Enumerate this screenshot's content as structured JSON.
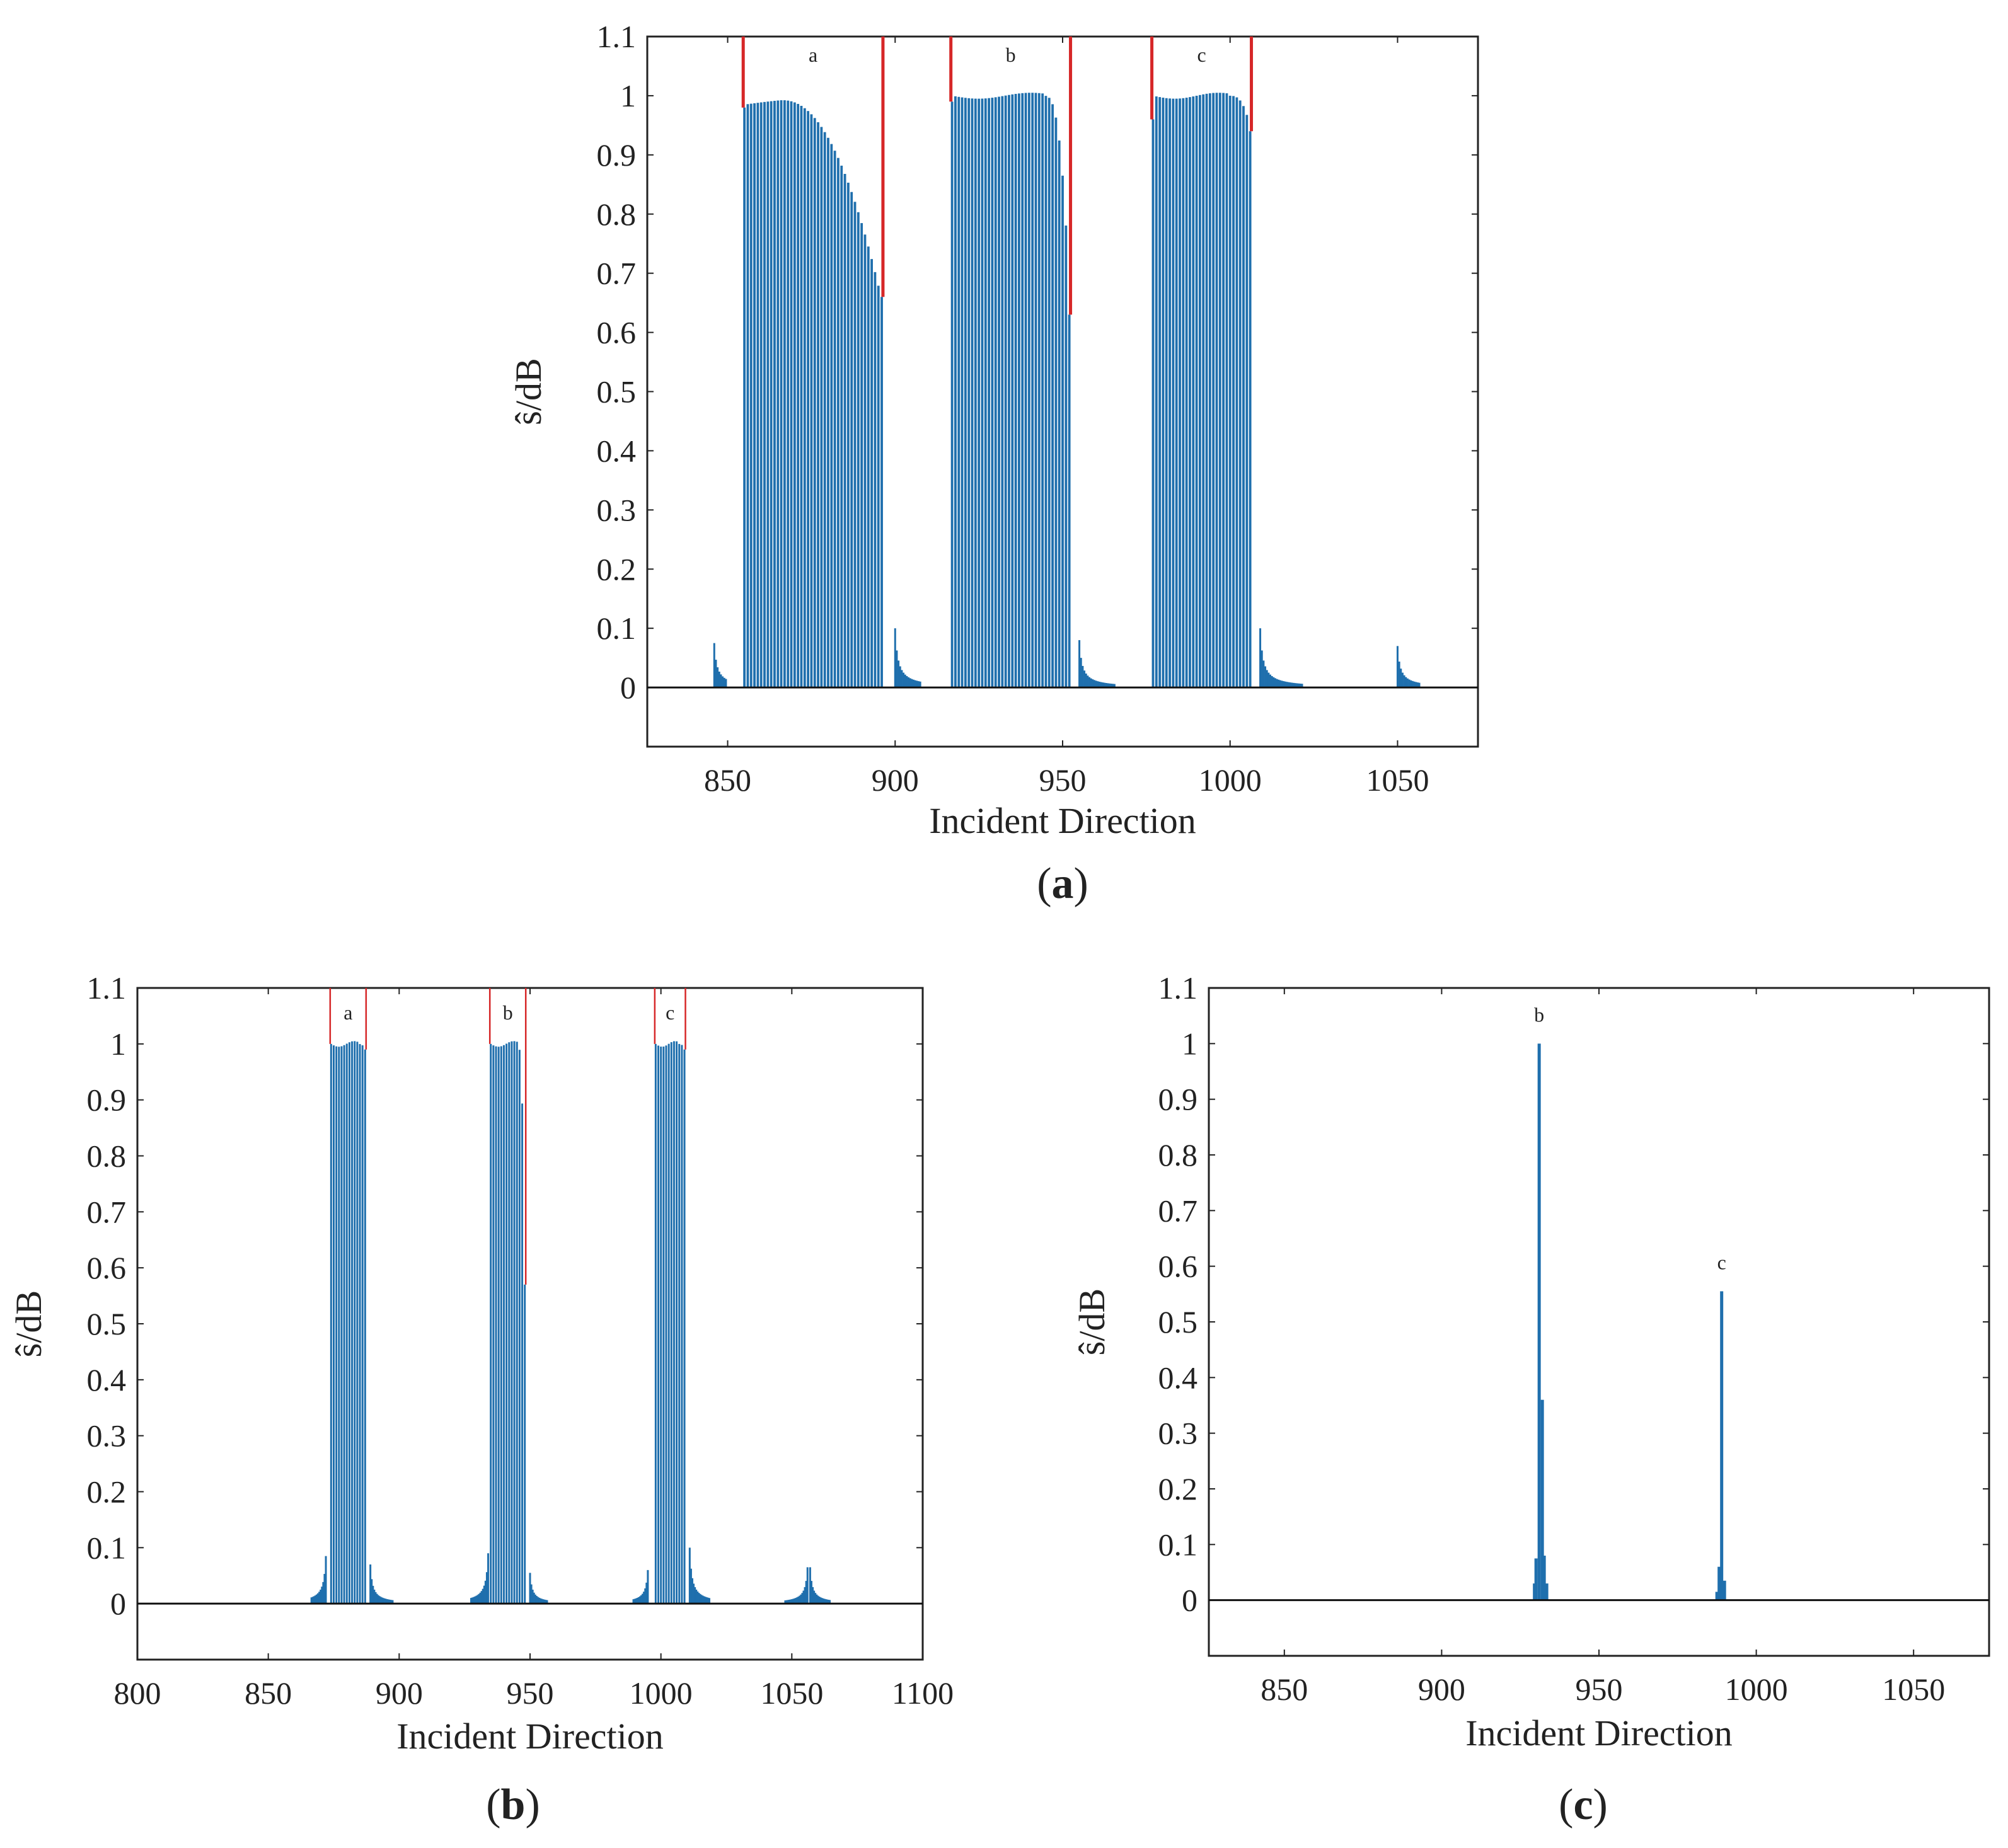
{
  "figure": {
    "bar_color": "#1f6fad",
    "highlight_color": "#d62728",
    "caption_paren_open": "(",
    "caption_paren_close": ")"
  },
  "chart_data": [
    {
      "id": "a",
      "type": "bar",
      "caption_letter": "a",
      "xlabel": "Incident Direction",
      "ylabel": "ŝ/dB",
      "xlim": [
        826,
        1074
      ],
      "ylim": [
        -0.1,
        1.1
      ],
      "xticks": [
        850,
        900,
        950,
        1000,
        1050
      ],
      "yticks": [
        0,
        0.1,
        0.2,
        0.3,
        0.4,
        0.5,
        0.6,
        0.7,
        0.8,
        0.9,
        1,
        1.1
      ],
      "bar_step": 1,
      "bands": [
        {
          "label": "a",
          "start": 855,
          "end": 896,
          "left_edge": 0.98,
          "right_edge": 0.66,
          "shape": "arc"
        },
        {
          "label": "b",
          "start": 917,
          "end": 952,
          "left_edge": 0.99,
          "right_edge": 0.63,
          "shape": "flat"
        },
        {
          "label": "c",
          "start": 977,
          "end": 1006,
          "left_edge": 0.96,
          "right_edge": 0.94,
          "shape": "flat"
        }
      ],
      "sidelobes": [
        {
          "x": 846,
          "peak": 0.075,
          "len": 8
        },
        {
          "x": 900,
          "peak": 0.1,
          "len": 16
        },
        {
          "x": 955,
          "peak": 0.08,
          "len": 22
        },
        {
          "x": 1009,
          "peak": 0.1,
          "len": 26
        },
        {
          "x": 1050,
          "peak": 0.07,
          "len": 14
        }
      ]
    },
    {
      "id": "b",
      "type": "bar",
      "caption_letter": "b",
      "xlabel": "Incident Direction",
      "ylabel": "ŝ/dB",
      "xlim": [
        800,
        1100
      ],
      "ylim": [
        -0.1,
        1.1
      ],
      "xticks": [
        800,
        850,
        900,
        950,
        1000,
        1050,
        1100
      ],
      "yticks": [
        0,
        0.1,
        0.2,
        0.3,
        0.4,
        0.5,
        0.6,
        0.7,
        0.8,
        0.9,
        1,
        1.1
      ],
      "bar_step": 1,
      "bands": [
        {
          "label": "a",
          "start": 874,
          "end": 887,
          "left_edge": 1.0,
          "right_edge": 0.99,
          "shape": "flat"
        },
        {
          "label": "b",
          "start": 935,
          "end": 948,
          "left_edge": 1.0,
          "right_edge": 0.57,
          "shape": "flat"
        },
        {
          "label": "c",
          "start": 998,
          "end": 1009,
          "left_edge": 1.0,
          "right_edge": 0.99,
          "shape": "flat"
        }
      ],
      "sidelobes": [
        {
          "x": 872,
          "peak": 0.085,
          "len": 12,
          "dir": -1
        },
        {
          "x": 889,
          "peak": 0.07,
          "len": 18
        },
        {
          "x": 934,
          "peak": 0.09,
          "len": 14,
          "dir": -1
        },
        {
          "x": 950,
          "peak": 0.055,
          "len": 14
        },
        {
          "x": 995,
          "peak": 0.06,
          "len": 12,
          "dir": -1
        },
        {
          "x": 1011,
          "peak": 0.1,
          "len": 16
        },
        {
          "x": 1056,
          "peak": 0.065,
          "len": 18,
          "dir": -1
        },
        {
          "x": 1057,
          "peak": 0.065,
          "len": 16
        }
      ]
    },
    {
      "id": "c",
      "type": "bar",
      "caption_letter": "c",
      "xlabel": "Incident Direction",
      "ylabel": "ŝ/dB",
      "xlim": [
        826,
        1074
      ],
      "ylim": [
        -0.1,
        1.1
      ],
      "xticks": [
        850,
        900,
        950,
        1000,
        1050
      ],
      "yticks": [
        0,
        0.1,
        0.2,
        0.3,
        0.4,
        0.5,
        0.6,
        0.7,
        0.8,
        0.9,
        1,
        1.1
      ],
      "spikes": [
        {
          "label": "b",
          "x": 931,
          "value": 1.0
        },
        {
          "label": "",
          "x": 930,
          "value": 0.075
        },
        {
          "label": "",
          "x": 932,
          "value": 0.36
        },
        {
          "label": "",
          "x": 932.6,
          "value": 0.08
        },
        {
          "label": "",
          "x": 929.5,
          "value": 0.03
        },
        {
          "label": "",
          "x": 933.4,
          "value": 0.03
        },
        {
          "label": "c",
          "x": 989,
          "value": 0.555
        },
        {
          "label": "",
          "x": 988.2,
          "value": 0.06
        },
        {
          "label": "",
          "x": 989.9,
          "value": 0.035
        },
        {
          "label": "",
          "x": 987.5,
          "value": 0.015
        }
      ]
    }
  ]
}
